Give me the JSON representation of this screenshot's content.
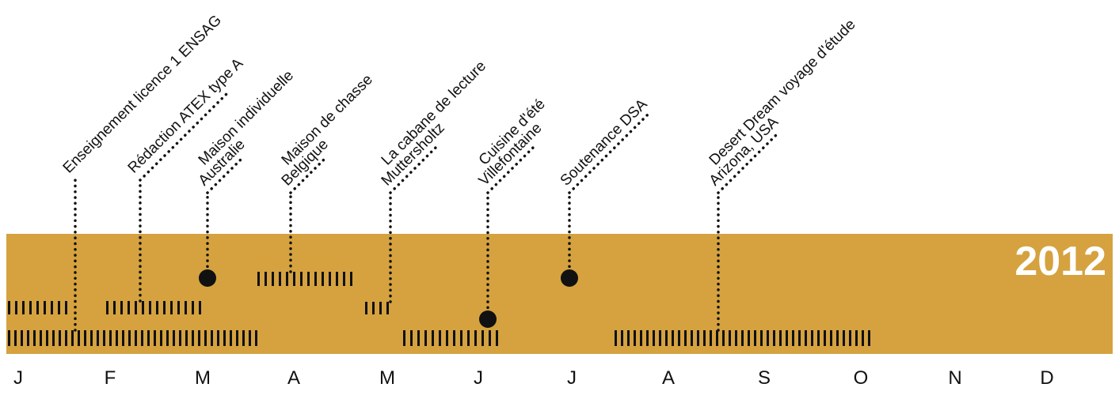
{
  "year": "2012",
  "colors": {
    "band": "#D5A23F",
    "ink": "#111111",
    "year_text": "#ffffff"
  },
  "months": [
    "J",
    "F",
    "M",
    "A",
    "M",
    "J",
    "J",
    "A",
    "S",
    "O",
    "N",
    "D"
  ],
  "events": [
    {
      "id": "enseignement",
      "lines": [
        "Enseignement licence 1 ENSAG"
      ]
    },
    {
      "id": "atex",
      "lines": [
        "Rédaction ATEX type A"
      ]
    },
    {
      "id": "maison-individuelle",
      "lines": [
        "Maison individuelle",
        "Australie"
      ]
    },
    {
      "id": "maison-chasse",
      "lines": [
        "Maison de chasse",
        "Belgique"
      ]
    },
    {
      "id": "cabane-lecture",
      "lines": [
        "La cabane de lecture",
        "Muttersholtz"
      ]
    },
    {
      "id": "cuisine-ete",
      "lines": [
        "Cuisine d'été",
        "Villefontaine"
      ]
    },
    {
      "id": "soutenance",
      "lines": [
        "Soutenance DSA"
      ]
    },
    {
      "id": "desert-dream",
      "lines": [
        "Desert Dream  voyage d'étude",
        "Arizona, USA"
      ]
    }
  ]
}
